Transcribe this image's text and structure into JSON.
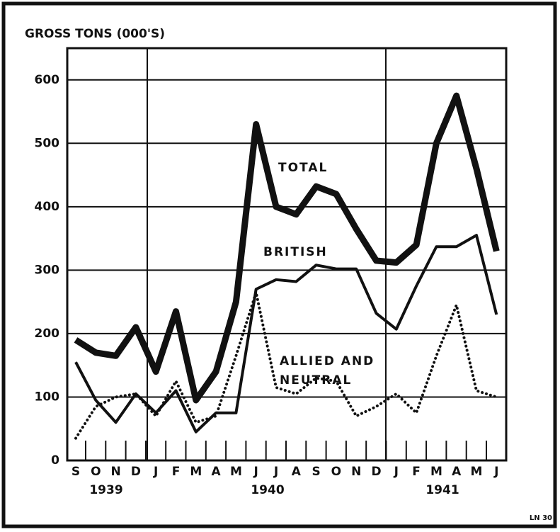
{
  "chart_data": {
    "type": "line",
    "y_label": "GROSS TONS (000'S)",
    "categories": [
      "S",
      "O",
      "N",
      "D",
      "J",
      "F",
      "M",
      "A",
      "M",
      "J",
      "J",
      "A",
      "S",
      "O",
      "N",
      "D",
      "J",
      "F",
      "M",
      "A",
      "M",
      "J"
    ],
    "year_labels": [
      "1939",
      "1940",
      "1941"
    ],
    "series": [
      {
        "name": "TOTAL",
        "color": "#111111",
        "style": "thick",
        "values": [
          190,
          170,
          165,
          210,
          140,
          235,
          95,
          140,
          250,
          530,
          400,
          388,
          432,
          420,
          365,
          315,
          312,
          340,
          500,
          575,
          460,
          330
        ]
      },
      {
        "name": "BRITISH",
        "color": "#111111",
        "style": "medium",
        "values": [
          155,
          95,
          60,
          105,
          75,
          110,
          45,
          75,
          75,
          270,
          285,
          282,
          308,
          302,
          302,
          232,
          207,
          275,
          337,
          337,
          355,
          230
        ]
      },
      {
        "name": "ALLIED AND NEUTRAL",
        "color": "#111111",
        "style": "dotted",
        "values": [
          35,
          85,
          100,
          105,
          70,
          125,
          60,
          70,
          165,
          265,
          115,
          105,
          130,
          125,
          70,
          85,
          105,
          75,
          165,
          245,
          110,
          100
        ]
      }
    ],
    "ylim": [
      0,
      650
    ],
    "yticks": [
      0,
      100,
      200,
      300,
      400,
      500,
      600
    ],
    "grid": true,
    "footnote": "LN 30"
  }
}
